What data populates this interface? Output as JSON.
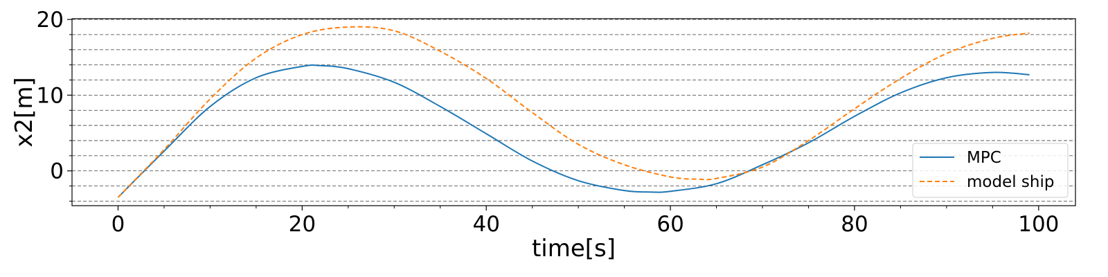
{
  "chart_data": {
    "type": "line",
    "xlabel": "time[s]",
    "ylabel": "x2[m]",
    "xlim": [
      -5,
      104
    ],
    "ylim": [
      -4.6,
      20.1
    ],
    "xticks": [
      0,
      20,
      40,
      60,
      80,
      100
    ],
    "xtick_labels": [
      "0",
      "20",
      "40",
      "60",
      "80",
      "100"
    ],
    "yticks": [
      0,
      10,
      20
    ],
    "ytick_labels": [
      "0",
      "10",
      "20"
    ],
    "grid": {
      "axis": "y",
      "minor": true,
      "style": "dashed",
      "spacing": 2
    },
    "legend": {
      "placement": "lower-right"
    },
    "series": [
      {
        "name": "MPC",
        "color": "#1f77b4",
        "dash": "solid",
        "x": [
          0,
          5,
          10,
          15,
          20,
          22,
          25,
          30,
          35,
          40,
          45,
          50,
          55,
          58,
          60,
          65,
          70,
          75,
          80,
          85,
          90,
          95,
          99
        ],
        "y": [
          -3.5,
          2.6,
          8.5,
          12.3,
          13.8,
          13.9,
          13.5,
          11.7,
          8.5,
          4.9,
          1.3,
          -1.3,
          -2.6,
          -2.8,
          -2.7,
          -1.7,
          0.8,
          3.7,
          7.2,
          10.3,
          12.3,
          13.0,
          12.7
        ]
      },
      {
        "name": "model ship",
        "color": "#ff7f0e",
        "dash": "dashed",
        "x": [
          0,
          5,
          10,
          15,
          20,
          25,
          30,
          35,
          40,
          45,
          50,
          55,
          60,
          63,
          65,
          70,
          75,
          80,
          85,
          90,
          95,
          99
        ],
        "y": [
          -3.5,
          2.8,
          9.5,
          14.9,
          18.0,
          19.0,
          18.5,
          15.8,
          12.2,
          7.7,
          3.5,
          0.8,
          -0.8,
          -1.1,
          -1.0,
          0.5,
          4.0,
          8.2,
          12.2,
          15.5,
          17.5,
          18.2
        ]
      }
    ]
  }
}
